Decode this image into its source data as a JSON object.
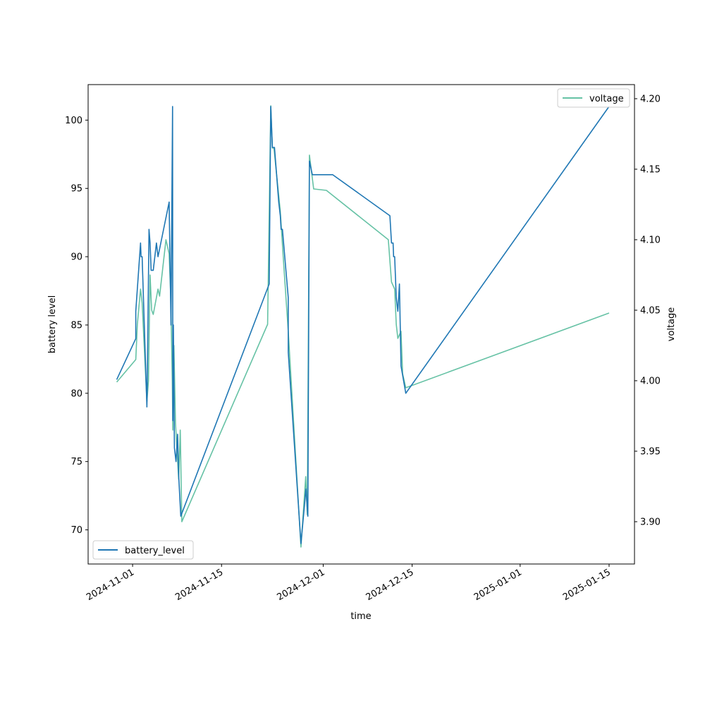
{
  "chart_data": {
    "type": "line",
    "title": "",
    "xlabel": "time",
    "ylabel": "battery level",
    "y2label": "voltage",
    "x_ticks": [
      "2024-11-01",
      "2024-11-15",
      "2024-12-01",
      "2024-12-15",
      "2025-01-01",
      "2025-01-15"
    ],
    "y_ticks": [
      70,
      75,
      80,
      85,
      90,
      95,
      100
    ],
    "y2_ticks": [
      "3.90",
      "3.95",
      "4.00",
      "4.05",
      "4.10",
      "4.15",
      "4.20"
    ],
    "xlim": [
      "2024-10-25",
      "2025-01-19"
    ],
    "ylim": [
      67.5,
      102.6
    ],
    "y2lim": [
      3.87,
      4.21
    ],
    "grid": false,
    "series": [
      {
        "name": "battery_level",
        "axis": "left",
        "color": "#1f77b4",
        "legend_position": "lower-left",
        "points": [
          [
            "2024-10-29 12:00",
            81
          ],
          [
            "2024-11-01 12:00",
            84
          ],
          [
            "2024-11-01 12:00",
            86
          ],
          [
            "2024-11-02 06:00",
            91
          ],
          [
            "2024-11-02 08:00",
            90
          ],
          [
            "2024-11-02 12:00",
            90
          ],
          [
            "2024-11-03 06:00",
            79
          ],
          [
            "2024-11-03 07:00",
            80
          ],
          [
            "2024-11-03 14:00",
            92
          ],
          [
            "2024-11-03 18:00",
            91
          ],
          [
            "2024-11-03 22:00",
            89
          ],
          [
            "2024-11-04 06:00",
            89
          ],
          [
            "2024-11-04 18:00",
            91
          ],
          [
            "2024-11-05 00:00",
            90
          ],
          [
            "2024-11-06 18:00",
            94
          ],
          [
            "2024-11-07 01:00",
            85
          ],
          [
            "2024-11-07 07:00",
            101
          ],
          [
            "2024-11-07 08:00",
            78
          ],
          [
            "2024-11-07 10:00",
            85
          ],
          [
            "2024-11-07 14:00",
            76
          ],
          [
            "2024-11-07 20:00",
            75
          ],
          [
            "2024-11-08 02:00",
            77
          ],
          [
            "2024-11-08 06:00",
            74
          ],
          [
            "2024-11-08 14:00",
            71
          ],
          [
            "2024-11-22 12:00",
            88
          ],
          [
            "2024-11-22 18:00",
            101
          ],
          [
            "2024-11-23 00:00",
            98
          ],
          [
            "2024-11-23 08:00",
            98
          ],
          [
            "2024-11-24 00:00",
            94
          ],
          [
            "2024-11-24 06:00",
            93
          ],
          [
            "2024-11-24 09:00",
            92
          ],
          [
            "2024-11-24 14:00",
            92
          ],
          [
            "2024-11-25 12:00",
            87
          ],
          [
            "2024-11-25 12:00",
            83
          ],
          [
            "2024-11-27 12:00",
            69
          ],
          [
            "2024-11-28 07:00",
            73
          ],
          [
            "2024-11-28 14:00",
            71
          ],
          [
            "2024-11-28 20:00",
            97
          ],
          [
            "2024-11-29 07:00",
            96
          ],
          [
            "2024-12-02 12:00",
            96
          ],
          [
            "2024-12-11 12:00",
            93
          ],
          [
            "2024-12-11 18:00",
            91
          ],
          [
            "2024-12-12 00:00",
            91
          ],
          [
            "2024-12-12 02:00",
            90
          ],
          [
            "2024-12-12 06:00",
            90
          ],
          [
            "2024-12-12 12:00",
            87
          ],
          [
            "2024-12-12 18:00",
            86
          ],
          [
            "2024-12-13 00:00",
            88
          ],
          [
            "2024-12-13 06:00",
            82
          ],
          [
            "2024-12-14 00:00",
            80
          ],
          [
            "2025-01-15 00:00",
            101
          ]
        ]
      },
      {
        "name": "voltage",
        "axis": "right",
        "color": "#66c2a5",
        "legend_position": "upper-right",
        "points": [
          [
            "2024-10-29 12:00",
            3.999
          ],
          [
            "2024-11-01 12:00",
            4.015
          ],
          [
            "2024-11-01 18:00",
            4.04
          ],
          [
            "2024-11-02 06:00",
            4.065
          ],
          [
            "2024-11-02 12:00",
            4.055
          ],
          [
            "2024-11-03 06:00",
            3.985
          ],
          [
            "2024-11-03 12:00",
            4.0
          ],
          [
            "2024-11-03 18:00",
            4.075
          ],
          [
            "2024-11-04 00:00",
            4.05
          ],
          [
            "2024-11-04 06:00",
            4.047
          ],
          [
            "2024-11-05 00:00",
            4.065
          ],
          [
            "2024-11-05 06:00",
            4.06
          ],
          [
            "2024-11-06 06:00",
            4.1
          ],
          [
            "2024-11-06 18:00",
            4.09
          ],
          [
            "2024-11-07 00:00",
            4.06
          ],
          [
            "2024-11-07 06:00",
            4.0
          ],
          [
            "2024-11-07 08:00",
            3.965
          ],
          [
            "2024-11-07 12:00",
            4.025
          ],
          [
            "2024-11-07 18:00",
            3.97
          ],
          [
            "2024-11-08 06:00",
            3.93
          ],
          [
            "2024-11-08 12:00",
            3.965
          ],
          [
            "2024-11-08 18:00",
            3.9
          ],
          [
            "2024-11-22 06:00",
            4.04
          ],
          [
            "2024-11-22 18:00",
            4.195
          ],
          [
            "2024-11-23 00:00",
            4.165
          ],
          [
            "2024-11-23 06:00",
            4.165
          ],
          [
            "2024-11-24 06:00",
            4.12
          ],
          [
            "2024-11-24 18:00",
            4.085
          ],
          [
            "2024-11-25 12:00",
            4.035
          ],
          [
            "2024-11-27 12:00",
            3.882
          ],
          [
            "2024-11-28 06:00",
            3.932
          ],
          [
            "2024-11-28 12:00",
            3.905
          ],
          [
            "2024-11-28 20:00",
            4.16
          ],
          [
            "2024-11-29 12:00",
            4.136
          ],
          [
            "2024-12-01 12:00",
            4.135
          ],
          [
            "2024-12-11 06:00",
            4.1
          ],
          [
            "2024-12-11 18:00",
            4.07
          ],
          [
            "2024-12-12 06:00",
            4.065
          ],
          [
            "2024-12-12 12:00",
            4.04
          ],
          [
            "2024-12-12 18:00",
            4.03
          ],
          [
            "2024-12-13 06:00",
            4.035
          ],
          [
            "2024-12-13 12:00",
            4.005
          ],
          [
            "2024-12-14 00:00",
            3.995
          ],
          [
            "2025-01-15 00:00",
            4.048
          ]
        ]
      }
    ]
  }
}
